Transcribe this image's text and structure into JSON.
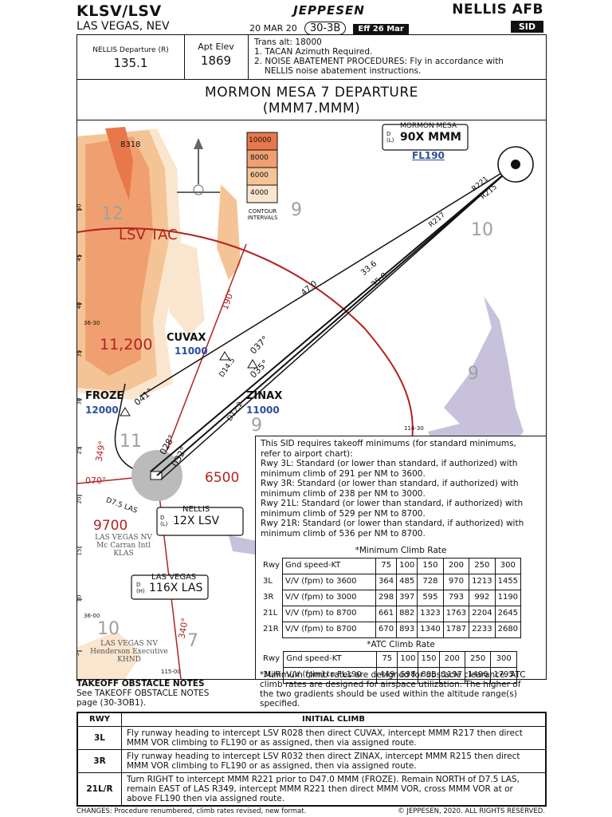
{
  "header": {
    "ident": "KLSV/LSV",
    "city": "LAS VEGAS, NEV",
    "brand": "JEPPESEN",
    "date": "20 MAR 20",
    "page": "30-3B",
    "effective": "Eff 26 Mar",
    "airport": "NELLIS AFB",
    "chart_type": "SID"
  },
  "info": {
    "freq_label": "NELLIS Departure (R)",
    "freq_value": "135.1",
    "elev_label": "Apt Elev",
    "elev_value": "1869",
    "notes": [
      "Trans alt: 18000",
      "1. TACAN Azimuth Required.",
      "2. NOISE ABATEMENT PROCEDURES: Fly in accordance with",
      "NELLIS noise abatement instructions."
    ]
  },
  "title": {
    "line1": "MORMON MESA 7 DEPARTURE",
    "line2": "(MMM7.MMM)"
  },
  "map": {
    "contour_legend": [
      "10000",
      "8000",
      "6000",
      "4000"
    ],
    "contour_caption": [
      "CONTOUR",
      "INTERVALS"
    ],
    "colors": {
      "c10000": "#e8784a",
      "c8000": "#f0a070",
      "c6000": "#f5c496",
      "c4000": "#fae6cf",
      "terrain": "#f2b98c",
      "water": "#c8c1dc",
      "route": "#111111",
      "radial": "#b22222",
      "blue": "#2a4f9c"
    },
    "spot_elevation": "8318",
    "grid_numbers": {
      "g1": "12",
      "g1b": "2",
      "g2": "9",
      "g2b": "6",
      "g3": "10",
      "g3b": "3",
      "g4": "11,200",
      "g5": "9",
      "g5b": "3",
      "g6": "11",
      "g6b": "7",
      "g7": "9",
      "g7b": "3",
      "g8": "10",
      "g8b": "8",
      "g9": "7",
      "g9b": "7",
      "g10": "6500",
      "g11": "9700"
    },
    "lat_marks": [
      "50",
      "45",
      "40",
      "36-30",
      "35",
      "30",
      "25",
      "20",
      "15",
      "10",
      "36-00",
      "5"
    ],
    "lon_marks": [
      "114-30",
      "115-00"
    ],
    "lsv_tac_label": "LSV TAC",
    "mormon_mesa": {
      "name": "MORMON MESA",
      "d": "D",
      "l": "(L)",
      "freq": "90X MMM",
      "alt": "FL190"
    },
    "cuvax": {
      "name": "CUVAX",
      "alt": "11000"
    },
    "froze": {
      "name": "FROZE",
      "alt": "12000"
    },
    "zinax": {
      "name": "ZINAX",
      "alt": "11000"
    },
    "nellis": {
      "name": "NELLIS",
      "d": "D",
      "l": "(L)",
      "freq": "12X LSV"
    },
    "las_vegas_vor": {
      "name": "LAS VEGAS",
      "d": "D",
      "h": "(H)",
      "freq": "116X LAS"
    },
    "klas": [
      "LAS VEGAS NV",
      "Mc Carran Intl",
      "KLAS"
    ],
    "khnd": [
      "LAS VEGAS NV",
      "Henderson Executive",
      "KHND"
    ],
    "radials": {
      "r221": "R221",
      "r215": "R215",
      "r217": "R217",
      "r190": "190°",
      "r349": "349°",
      "r340": "340°",
      "r070": "070°",
      "r028": "028°",
      "r032": "032°",
      "r037": "037°",
      "r035": "035°",
      "r041": "041°"
    },
    "distances": {
      "d470": "47.0",
      "d336": "33.6",
      "d358": "35.8",
      "d145": "D14.5",
      "d122": "D12.2",
      "d75": "D7.5 LAS"
    },
    "d_marks": "D"
  },
  "requirements": {
    "text": [
      "This SID requires takeoff minimums (for standard minimums,",
      "refer to airport chart):",
      "Rwy 3L: Standard (or lower than standard, if authorized) with",
      "minimum climb of 291 per NM to 3600.",
      "Rwy 3R: Standard (or lower than standard, if authorized) with",
      "minimum climb of 238 per NM to 3000.",
      "Rwy 21L: Standard (or lower than standard, if authorized) with",
      "minimum climb of 529 per NM to 8700.",
      "Rwy 21R: Standard (or lower than standard, if authorized) with",
      "minimum climb of 536 per NM to 8700."
    ],
    "min_title": "*Minimum Climb Rate",
    "min_header": [
      "Rwy",
      "Gnd speed-KT",
      "75",
      "100",
      "150",
      "200",
      "250",
      "300"
    ],
    "min_rows": [
      [
        "3L",
        "V/V (fpm) to 3600",
        "364",
        "485",
        "728",
        "970",
        "1213",
        "1455"
      ],
      [
        "3R",
        "V/V (fpm) to 3000",
        "298",
        "397",
        "595",
        "793",
        "992",
        "1190"
      ],
      [
        "21L",
        "V/V (fpm) to 8700",
        "661",
        "882",
        "1323",
        "1763",
        "2204",
        "2645"
      ],
      [
        "21R",
        "V/V (fpm) to 8700",
        "670",
        "893",
        "1340",
        "1787",
        "2233",
        "2680"
      ]
    ],
    "atc_title": "*ATC Climb Rate",
    "atc_header": [
      "Rwy",
      "Gnd speed-KT",
      "75",
      "100",
      "150",
      "200",
      "250",
      "300"
    ],
    "atc_rows": [
      [
        "3L/R",
        "V/V (fpm) to FL190",
        "449",
        "598",
        "898",
        "1197",
        "1496",
        "1795"
      ]
    ],
    "footnote": [
      "*Minimum climb rates are designed for obstacle clearance. ATC",
      "climb rates are designed for airspace utilization. The higher of",
      "the two gradients should be used within the altitude range(s)",
      "specified."
    ]
  },
  "obstacle_notes": {
    "heading": "TAKEOFF OBSTACLE NOTES",
    "lines": [
      "See TAKEOFF OBSTACLE NOTES",
      "page (30-3OB1)."
    ]
  },
  "initial_climb": {
    "col_rwy": "RWY",
    "col_climb": "INITIAL CLIMB",
    "rows": [
      {
        "rwy": "3L",
        "text": "Fly runway heading to intercept LSV R028 then direct CUVAX, intercept MMM R217 then direct MMM VOR climbing to FL190 or as assigned, then via assigned route."
      },
      {
        "rwy": "3R",
        "text": "Fly runway heading to intercept LSV R032 then direct ZINAX, intercept MMM R215 then direct MMM VOR climbing to FL190 or as assigned, then via assigned route."
      },
      {
        "rwy": "21L/R",
        "text": "Turn RIGHT to intercept MMM R221 prior to D47.0 MMM (FROZE). Remain NORTH of D7.5 LAS, remain EAST of LAS R349, intercept MMM R221 then direct MMM VOR, cross MMM VOR at or above FL190 then via assigned route."
      }
    ]
  },
  "footer": {
    "changes": "CHANGES: Procedure renumbered, climb rates revised, new format.",
    "copyright": "© JEPPESEN, 2020. ALL RIGHTS RESERVED."
  }
}
